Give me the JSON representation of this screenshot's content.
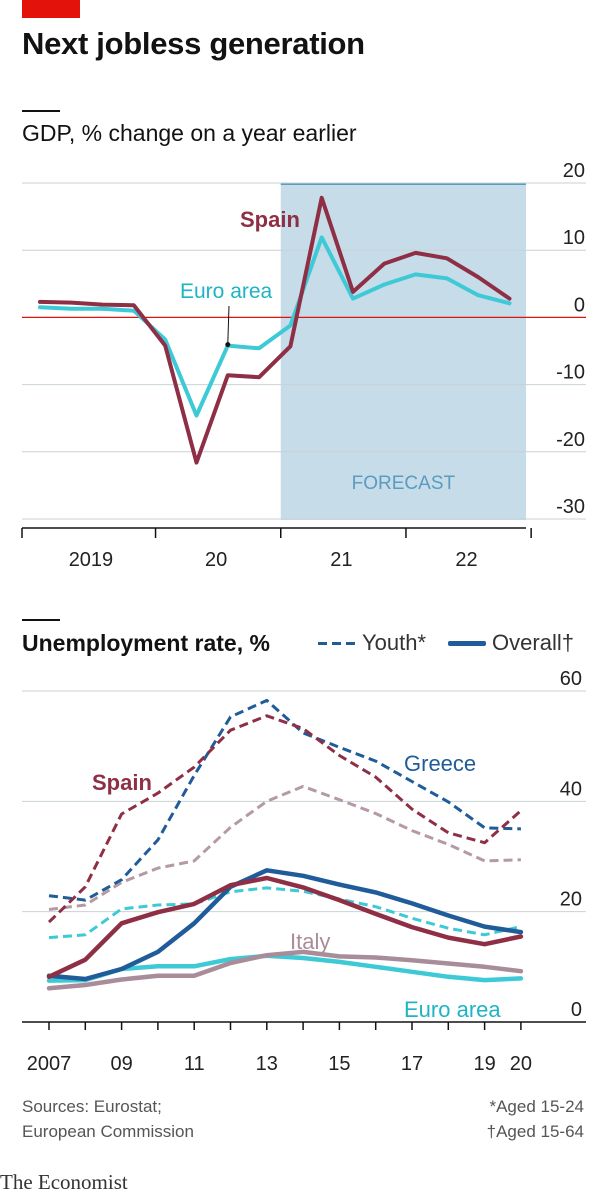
{
  "title": "Next jobless generation",
  "brand": "The Economist",
  "sources": [
    "Sources: Eurostat;",
    "European Commission"
  ],
  "notes": [
    "*Aged 15-24",
    "†Aged 15-64"
  ],
  "legend": {
    "youth_label": "Youth*",
    "overall_label": "Overall†"
  },
  "colors": {
    "spain": "#8e2f45",
    "euro": "#3ec9d6",
    "greece": "#1f5c99",
    "italy": "#b39aa6",
    "italy_overall": "#a98c99",
    "zero_line": "#e3120b",
    "forecast": "#c6dce8",
    "red_bar": "#e3120b"
  },
  "chart_data": [
    {
      "type": "line",
      "title": "GDP, % change on a year earlier",
      "x_tick_labels": [
        "2019",
        "20",
        "21",
        "22"
      ],
      "y_ticks": [
        20,
        10,
        0,
        -10,
        -20,
        -30
      ],
      "ylim": [
        -30,
        20
      ],
      "annotation": "FORECAST",
      "forecast_from": "2021 Q1",
      "grid": true,
      "series": [
        {
          "name": "Spain",
          "values": [
            {
              "x": "2019 Q1",
              "y": 2.3
            },
            {
              "x": "2019 Q2",
              "y": 2.2
            },
            {
              "x": "2019 Q3",
              "y": 1.9
            },
            {
              "x": "2019 Q4",
              "y": 1.8
            },
            {
              "x": "2020 Q1",
              "y": -4.2
            },
            {
              "x": "2020 Q2",
              "y": -21.6
            },
            {
              "x": "2020 Q3",
              "y": -8.6
            },
            {
              "x": "2020 Q4",
              "y": -8.9
            },
            {
              "x": "2021 Q1",
              "y": -4.3
            },
            {
              "x": "2021 Q2",
              "y": 17.8
            },
            {
              "x": "2021 Q3",
              "y": 3.8
            },
            {
              "x": "2021 Q4",
              "y": 8.0
            },
            {
              "x": "2022 Q1",
              "y": 9.6
            },
            {
              "x": "2022 Q2",
              "y": 8.8
            },
            {
              "x": "2022 Q3",
              "y": 6.0
            },
            {
              "x": "2022 Q4",
              "y": 2.8
            }
          ]
        },
        {
          "name": "Euro area",
          "values": [
            {
              "x": "2019 Q1",
              "y": 1.5
            },
            {
              "x": "2019 Q2",
              "y": 1.3
            },
            {
              "x": "2019 Q3",
              "y": 1.3
            },
            {
              "x": "2019 Q4",
              "y": 1.0
            },
            {
              "x": "2020 Q1",
              "y": -3.3
            },
            {
              "x": "2020 Q2",
              "y": -14.6
            },
            {
              "x": "2020 Q3",
              "y": -4.2
            },
            {
              "x": "2020 Q4",
              "y": -4.6
            },
            {
              "x": "2021 Q1",
              "y": -1.2
            },
            {
              "x": "2021 Q2",
              "y": 11.9
            },
            {
              "x": "2021 Q3",
              "y": 2.8
            },
            {
              "x": "2021 Q4",
              "y": 4.9
            },
            {
              "x": "2022 Q1",
              "y": 6.4
            },
            {
              "x": "2022 Q2",
              "y": 5.8
            },
            {
              "x": "2022 Q3",
              "y": 3.3
            },
            {
              "x": "2022 Q4",
              "y": 2.1
            }
          ]
        }
      ]
    },
    {
      "type": "line",
      "title": "Unemployment rate, %",
      "x": [
        2007,
        2008,
        2009,
        2010,
        2011,
        2012,
        2013,
        2014,
        2015,
        2016,
        2017,
        2018,
        2019,
        2020
      ],
      "x_tick_labels": [
        "2007",
        "09",
        "11",
        "13",
        "15",
        "17",
        "19",
        "20"
      ],
      "y_ticks": [
        60,
        40,
        20,
        0
      ],
      "ylim": [
        0,
        60
      ],
      "grid": true,
      "series": [
        {
          "name": "Greece",
          "style": "youth",
          "values": [
            22.9,
            22.1,
            25.8,
            33.0,
            44.7,
            55.3,
            58.3,
            52.4,
            49.8,
            47.3,
            43.6,
            39.9,
            35.2,
            35.0
          ]
        },
        {
          "name": "Spain",
          "style": "youth",
          "values": [
            18.1,
            24.5,
            37.7,
            41.5,
            46.2,
            52.9,
            55.5,
            53.2,
            48.3,
            44.4,
            38.6,
            34.3,
            32.5,
            38.3
          ]
        },
        {
          "name": "Italy",
          "style": "youth",
          "values": [
            20.4,
            21.2,
            25.3,
            27.9,
            29.2,
            35.3,
            40.0,
            42.7,
            40.3,
            37.8,
            34.7,
            32.2,
            29.2,
            29.4
          ]
        },
        {
          "name": "Euro area",
          "style": "youth",
          "values": [
            15.3,
            15.8,
            20.5,
            21.2,
            21.4,
            23.6,
            24.3,
            23.7,
            22.3,
            20.9,
            18.8,
            17.0,
            15.8,
            17.3
          ]
        },
        {
          "name": "Greece",
          "style": "overall",
          "values": [
            8.4,
            7.8,
            9.6,
            12.7,
            17.9,
            24.5,
            27.5,
            26.5,
            24.9,
            23.5,
            21.5,
            19.3,
            17.3,
            16.3
          ]
        },
        {
          "name": "Spain",
          "style": "overall",
          "values": [
            8.2,
            11.3,
            17.9,
            19.9,
            21.4,
            24.8,
            26.1,
            24.4,
            22.1,
            19.6,
            17.2,
            15.3,
            14.1,
            15.5
          ]
        },
        {
          "name": "Italy",
          "style": "overall",
          "values": [
            6.1,
            6.7,
            7.7,
            8.4,
            8.4,
            10.7,
            12.1,
            12.7,
            11.9,
            11.7,
            11.2,
            10.6,
            10.0,
            9.2
          ]
        },
        {
          "name": "Euro area",
          "style": "overall",
          "values": [
            7.5,
            7.6,
            9.6,
            10.1,
            10.1,
            11.4,
            12.0,
            11.6,
            10.9,
            10.0,
            9.1,
            8.2,
            7.6,
            7.9
          ]
        }
      ]
    }
  ]
}
